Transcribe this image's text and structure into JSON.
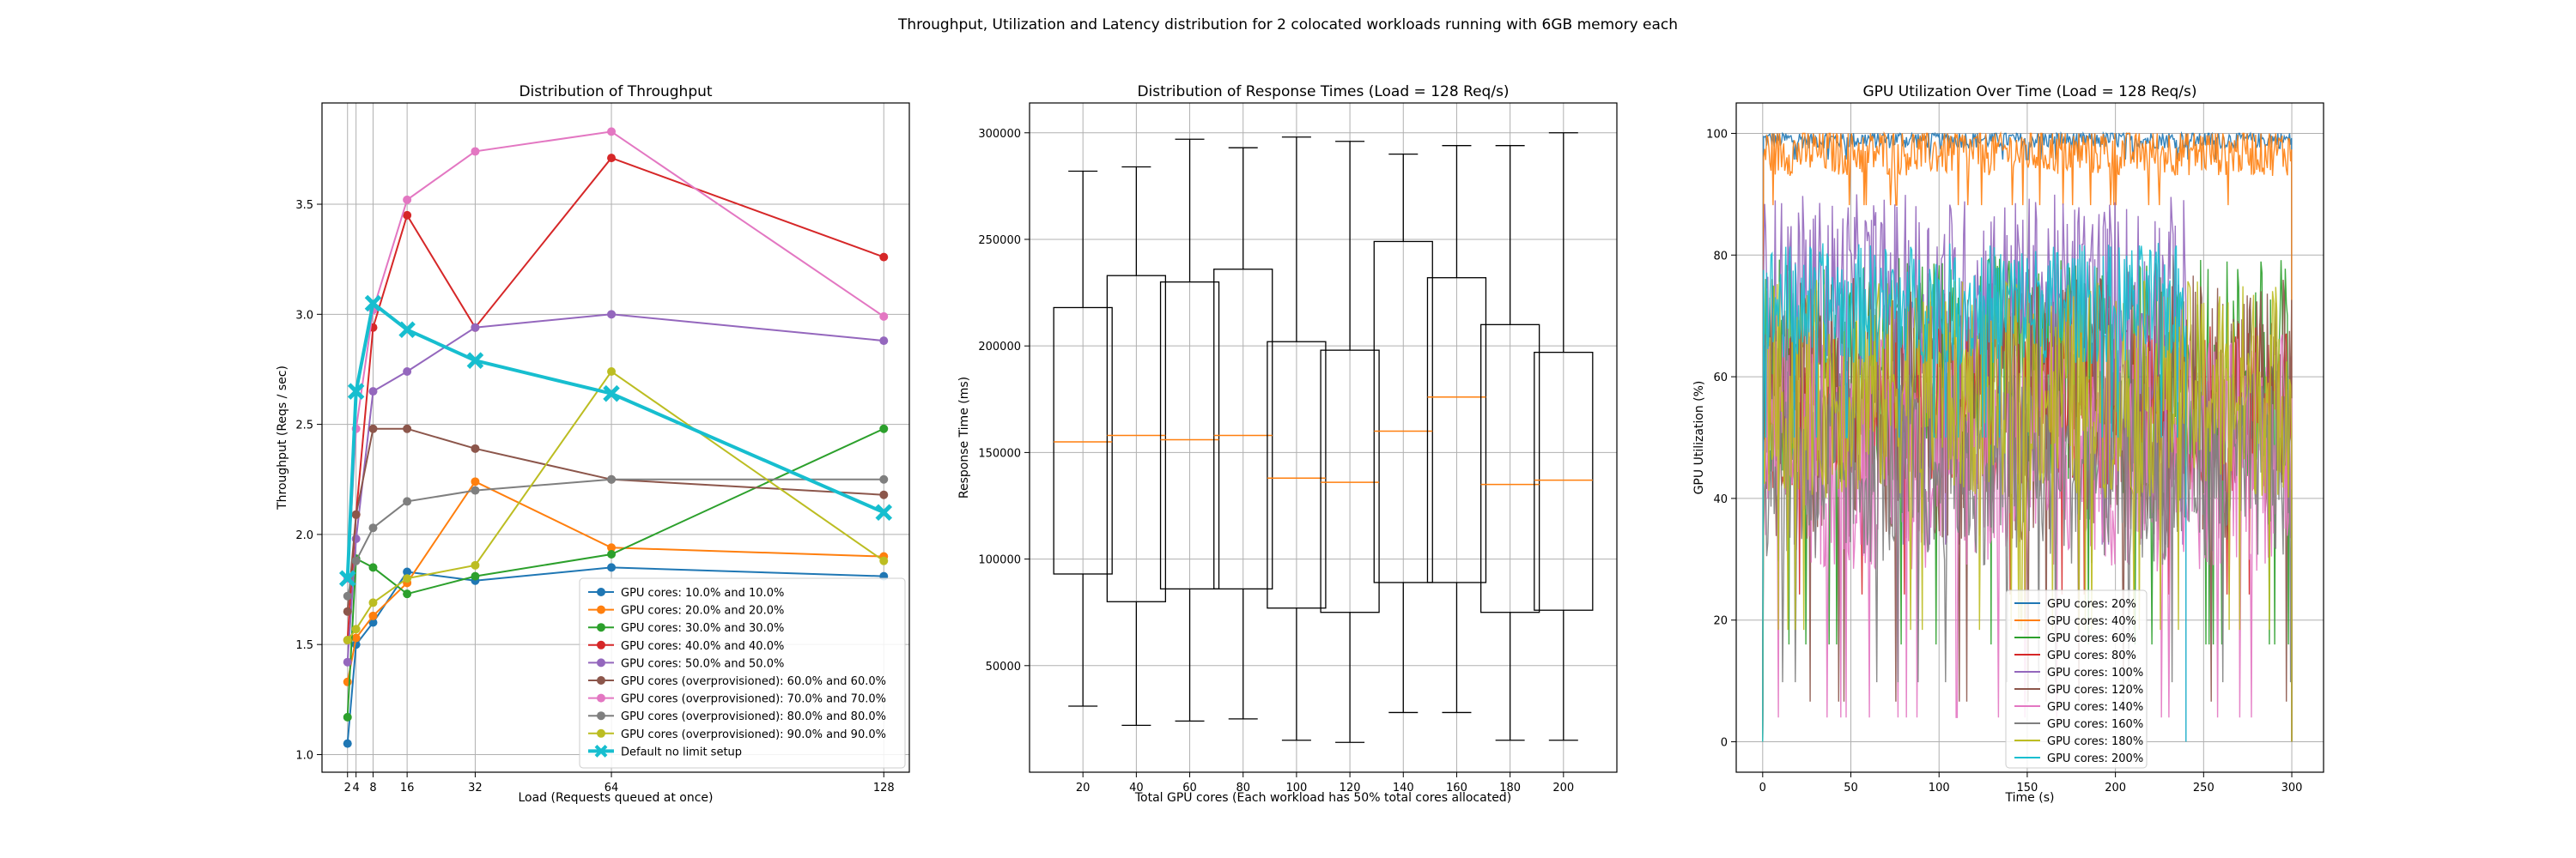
{
  "figure": {
    "suptitle": "Throughput, Utilization and Latency distribution for 2 colocated workloads running with 6GB memory each"
  },
  "chart_data": [
    {
      "type": "line",
      "title": "Distribution of Throughput",
      "xlabel": "Load (Requests queued at once)",
      "ylabel": "Throughput (Reqs / sec)",
      "x": [
        2,
        4,
        8,
        16,
        32,
        64,
        128
      ],
      "xticks": [
        "2",
        "4",
        "8",
        "16",
        "32",
        "64",
        "128"
      ],
      "xlim": [
        -4,
        134
      ],
      "ylim": [
        0.92,
        3.96
      ],
      "yticks": [
        1.0,
        1.5,
        2.0,
        2.5,
        3.0,
        3.5
      ],
      "ytick_labels": [
        "1.0",
        "1.5",
        "2.0",
        "2.5",
        "3.0",
        "3.5"
      ],
      "grid": true,
      "legend_position": "lower-right",
      "series": [
        {
          "name": "GPU cores: 10.0% and 10.0%",
          "color": "#1f77b4",
          "values": [
            1.05,
            1.5,
            1.6,
            1.83,
            1.79,
            1.85,
            1.81
          ]
        },
        {
          "name": "GPU cores: 20.0% and 20.0%",
          "color": "#ff7f0e",
          "values": [
            1.33,
            1.53,
            1.63,
            1.78,
            2.24,
            1.94,
            1.9
          ]
        },
        {
          "name": "GPU cores: 30.0% and 30.0%",
          "color": "#2ca02c",
          "values": [
            1.17,
            1.89,
            1.85,
            1.73,
            1.81,
            1.91,
            2.48
          ]
        },
        {
          "name": "GPU cores: 40.0% and 40.0%",
          "color": "#d62728",
          "values": [
            1.52,
            2.09,
            2.94,
            3.45,
            2.94,
            3.71,
            3.26
          ]
        },
        {
          "name": "GPU cores: 50.0% and 50.0%",
          "color": "#9467bd",
          "values": [
            1.42,
            1.98,
            2.65,
            2.74,
            2.94,
            3.0,
            2.88
          ]
        },
        {
          "name": "GPU cores (overprovisioned): 60.0% and 60.0%",
          "color": "#8c564b",
          "values": [
            1.65,
            2.09,
            2.48,
            2.48,
            2.39,
            2.25,
            2.18
          ]
        },
        {
          "name": "GPU cores (overprovisioned): 70.0% and 70.0%",
          "color": "#e377c2",
          "values": [
            1.8,
            2.48,
            3.02,
            3.52,
            3.74,
            3.83,
            2.99
          ]
        },
        {
          "name": "GPU cores (overprovisioned): 80.0% and 80.0%",
          "color": "#7f7f7f",
          "values": [
            1.72,
            1.88,
            2.03,
            2.15,
            2.2,
            2.25,
            2.25
          ]
        },
        {
          "name": "GPU cores (overprovisioned): 90.0% and 90.0%",
          "color": "#bcbd22",
          "values": [
            1.52,
            1.57,
            1.69,
            1.8,
            1.86,
            2.74,
            1.88
          ]
        },
        {
          "name": "Default no limit setup",
          "color": "#17becf",
          "values": [
            1.8,
            2.65,
            3.05,
            2.93,
            2.79,
            2.64,
            2.1
          ],
          "marker": "x"
        }
      ]
    },
    {
      "type": "box",
      "title": "Distribution of Response Times (Load = 128 Req/s)",
      "xlabel": "Total GPU cores (Each workload has 50% total cores allocated)",
      "ylabel": "Response Time (ms)",
      "categories": [
        "20",
        "40",
        "60",
        "80",
        "100",
        "120",
        "140",
        "160",
        "180",
        "200"
      ],
      "ylim": [
        0,
        314000
      ],
      "yticks": [
        50000,
        100000,
        150000,
        200000,
        250000,
        300000
      ],
      "ytick_labels": [
        "50000",
        "100000",
        "150000",
        "200000",
        "250000",
        "300000"
      ],
      "grid": true,
      "boxes": [
        {
          "whisker_low": 31000,
          "q1": 93000,
          "median": 155000,
          "q3": 218000,
          "whisker_high": 282000
        },
        {
          "whisker_low": 22000,
          "q1": 80000,
          "median": 158000,
          "q3": 233000,
          "whisker_high": 284000
        },
        {
          "whisker_low": 24000,
          "q1": 86000,
          "median": 156000,
          "q3": 230000,
          "whisker_high": 297000
        },
        {
          "whisker_low": 25000,
          "q1": 86000,
          "median": 158000,
          "q3": 236000,
          "whisker_high": 293000
        },
        {
          "whisker_low": 15000,
          "q1": 77000,
          "median": 138000,
          "q3": 202000,
          "whisker_high": 298000
        },
        {
          "whisker_low": 14000,
          "q1": 75000,
          "median": 136000,
          "q3": 198000,
          "whisker_high": 296000
        },
        {
          "whisker_low": 28000,
          "q1": 89000,
          "median": 160000,
          "q3": 249000,
          "whisker_high": 290000
        },
        {
          "whisker_low": 28000,
          "q1": 89000,
          "median": 176000,
          "q3": 232000,
          "whisker_high": 294000
        },
        {
          "whisker_low": 15000,
          "q1": 75000,
          "median": 135000,
          "q3": 210000,
          "whisker_high": 294000
        },
        {
          "whisker_low": 15000,
          "q1": 76000,
          "median": 137000,
          "q3": 197000,
          "whisker_high": 300000
        }
      ]
    },
    {
      "type": "line",
      "title": "GPU Utilization Over Time (Load = 128 Req/s)",
      "xlabel": "Time (s)",
      "ylabel": "GPU Utilization (%)",
      "xlim": [
        -15,
        318
      ],
      "ylim": [
        -5,
        105
      ],
      "xticks": [
        0,
        50,
        100,
        150,
        200,
        250,
        300
      ],
      "xtick_labels": [
        "0",
        "50",
        "100",
        "150",
        "200",
        "250",
        "300"
      ],
      "yticks": [
        0,
        20,
        40,
        60,
        80,
        100
      ],
      "ytick_labels": [
        "0",
        "20",
        "40",
        "60",
        "80",
        "100"
      ],
      "grid": true,
      "legend_position": "lower-center",
      "series": [
        {
          "name": "GPU cores: 20%",
          "color": "#1f77b4",
          "mean": 99,
          "spread": 1.5,
          "end": 300
        },
        {
          "name": "GPU cores: 40%",
          "color": "#ff7f0e",
          "mean": 97,
          "spread": 4,
          "end": 300
        },
        {
          "name": "GPU cores: 60%",
          "color": "#2ca02c",
          "mean": 60,
          "spread": 20,
          "end": 300
        },
        {
          "name": "GPU cores: 80%",
          "color": "#d62728",
          "mean": 55,
          "spread": 14,
          "end": 300
        },
        {
          "name": "GPU cores: 100%",
          "color": "#9467bd",
          "mean": 72,
          "spread": 18,
          "end": 240
        },
        {
          "name": "GPU cores: 120%",
          "color": "#8c564b",
          "mean": 55,
          "spread": 22,
          "end": 300
        },
        {
          "name": "GPU cores: 140%",
          "color": "#e377c2",
          "mean": 48,
          "spread": 20,
          "end": 300
        },
        {
          "name": "GPU cores: 160%",
          "color": "#7f7f7f",
          "mean": 45,
          "spread": 16,
          "end": 300
        },
        {
          "name": "GPU cores: 180%",
          "color": "#bcbd22",
          "mean": 58,
          "spread": 18,
          "end": 300
        },
        {
          "name": "GPU cores: 200%",
          "color": "#17becf",
          "mean": 72,
          "spread": 10,
          "end": 240
        }
      ]
    }
  ]
}
